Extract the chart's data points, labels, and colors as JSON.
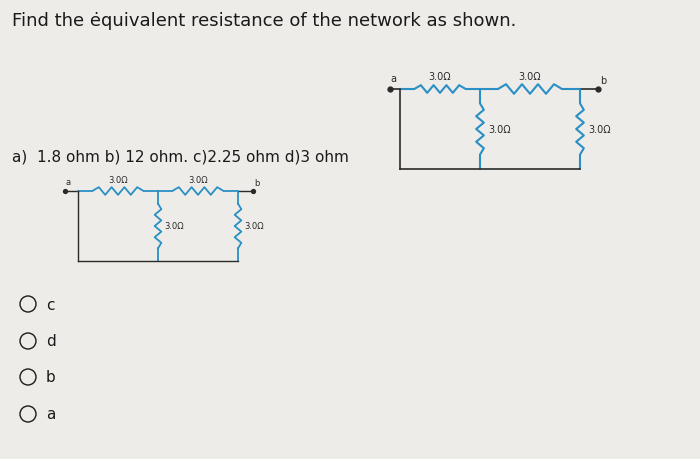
{
  "title": "Find the ėquivalent resistance of the network as shown.",
  "options_text": "a)  1.8 ohm b) 12 ohm. c)2.25 ohm d)3 ohm",
  "radio_options": [
    "c",
    "d",
    "b",
    "a"
  ],
  "background_color": "#eeece8",
  "text_color": "#1a1a1a",
  "circuit_color": "#2a2a2a",
  "resistor_color": "#2a8fc4",
  "font_size_title": 13,
  "font_size_options": 11,
  "font_size_radio": 11,
  "font_size_label_tr": 7,
  "font_size_label_bl": 6.5
}
